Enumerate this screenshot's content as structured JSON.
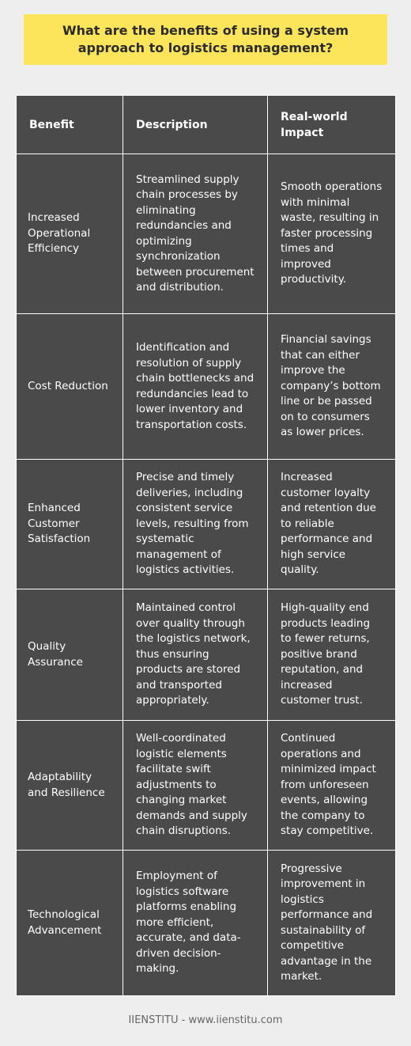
{
  "title": "What are the benefits of using a system approach to logistics management?",
  "table": {
    "headers": [
      "Benefit",
      "Description",
      "Real-world Impact"
    ],
    "rows": [
      {
        "benefit": "Increased Operational Efficiency",
        "description": "Streamlined supply chain processes by eliminating redundancies and optimizing synchronization between procurement and distribution.",
        "impact": "Smooth operations with minimal waste, resulting in faster processing times and improved productivity."
      },
      {
        "benefit": "Cost Reduction",
        "description": "Identification and resolution of supply chain bottlenecks and redundancies lead to lower inventory and transportation costs.",
        "impact": "Financial savings that can either improve the company’s bottom line or be passed on to consumers as lower prices."
      },
      {
        "benefit": "Enhanced Customer Satisfaction",
        "description": "Precise and timely deliveries, including consistent service levels, resulting from systematic management of logistics activities.",
        "impact": "Increased customer loyalty and retention due to reliable performance and high service quality."
      },
      {
        "benefit": "Quality Assurance",
        "description": "Maintained control over quality through the logistics network, thus ensuring products are stored and transported appropriately.",
        "impact": "High-quality end products leading to fewer returns, positive brand reputation, and increased customer trust."
      },
      {
        "benefit": "Adaptability and Resilience",
        "description": "Well-coordinated logistic elements facilitate swift adjustments to changing market demands and supply chain disruptions.",
        "impact": "Continued operations and minimized impact from unforeseen events, allowing the company to stay competitive."
      },
      {
        "benefit": "Technological Advancement",
        "description": "Employment of logistics software platforms enabling more efficient, accurate, and data-driven decision-making.",
        "impact": "Progressive improvement in logistics performance and sustainability of competitive advantage in the market."
      }
    ]
  },
  "footer": "IIENSTITU - www.iienstitu.com"
}
